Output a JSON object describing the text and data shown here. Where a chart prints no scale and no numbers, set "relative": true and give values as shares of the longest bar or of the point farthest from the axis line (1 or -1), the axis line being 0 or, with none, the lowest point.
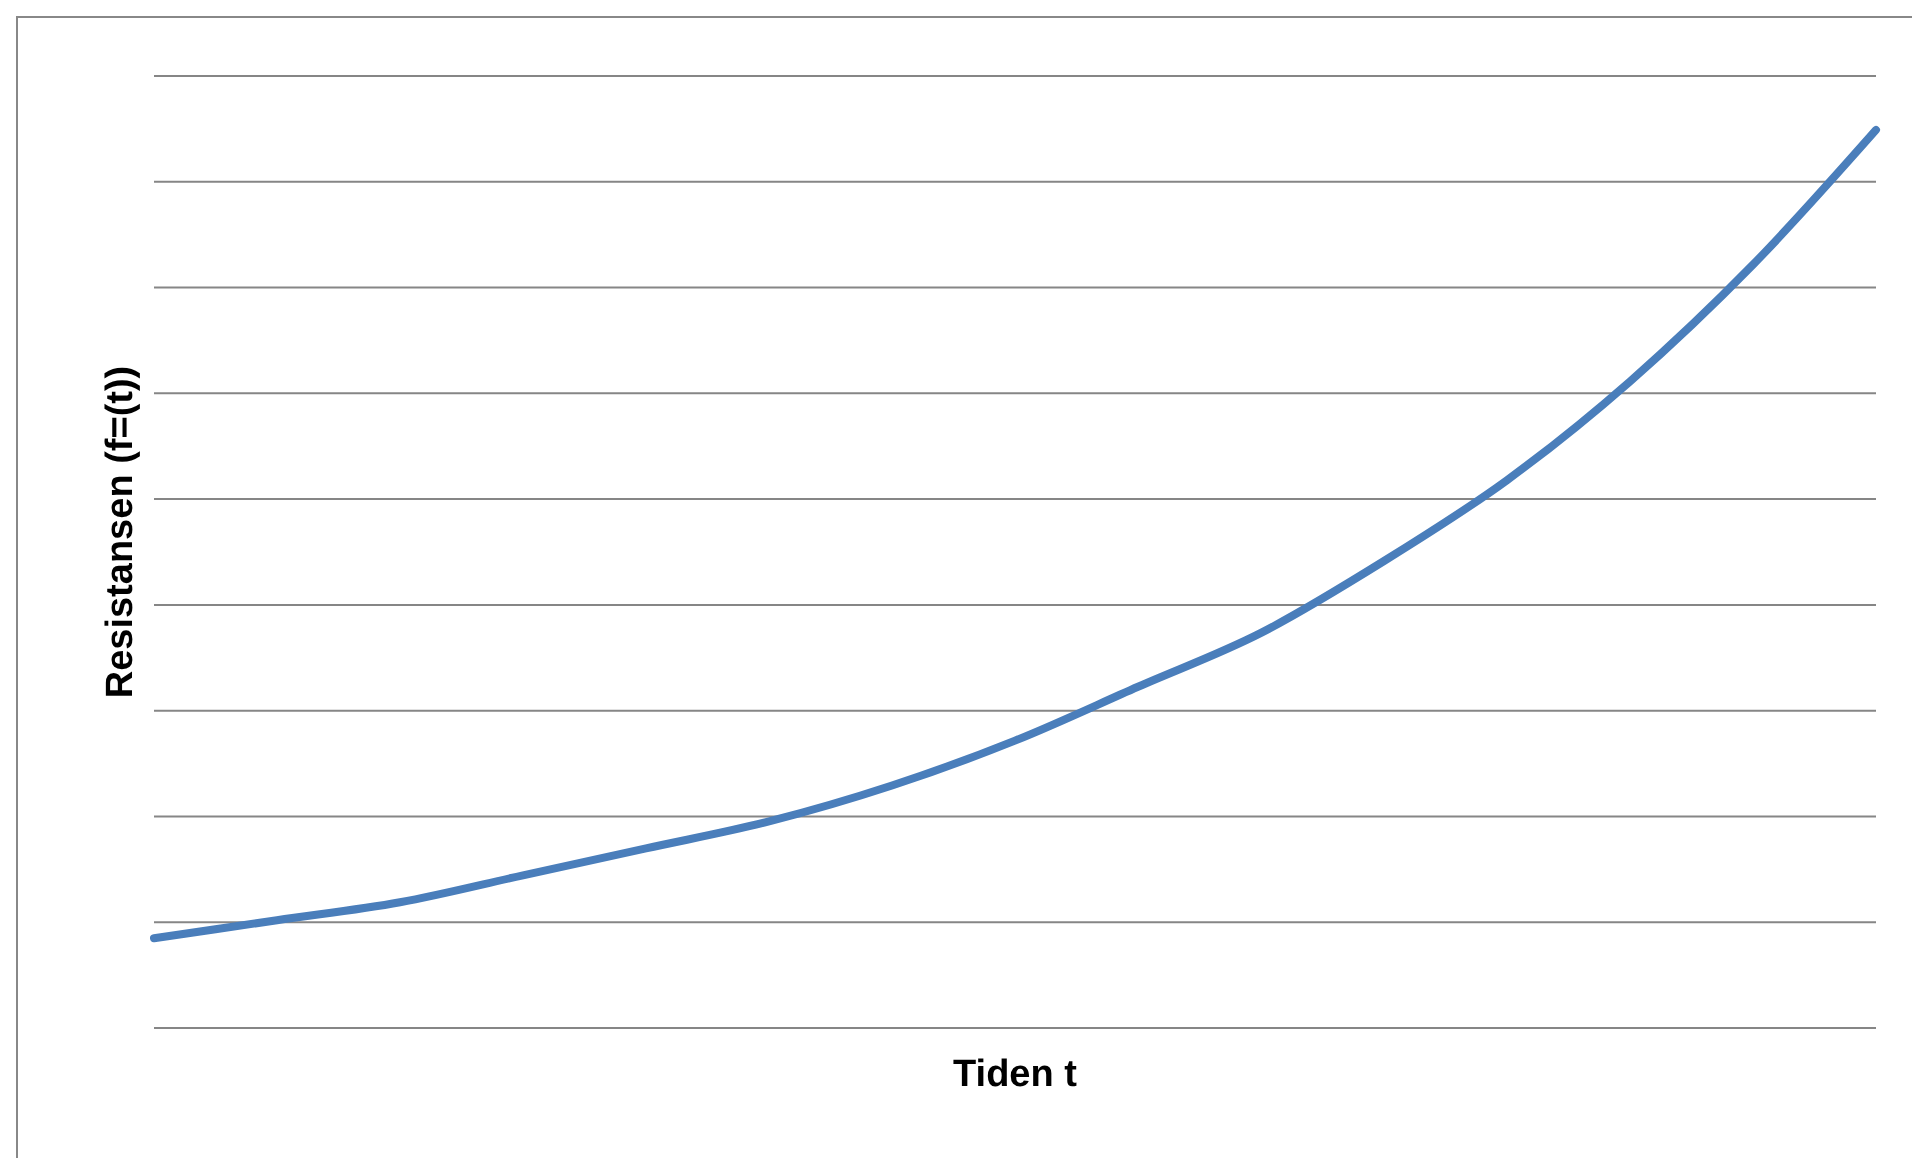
{
  "chart_data": {
    "type": "line",
    "relative": true,
    "xlabel": "Tiden t",
    "ylabel": "Resistansen (f=(t))",
    "grid": "y",
    "marker": "none",
    "line_style": "solid",
    "categories": [
      null,
      null,
      null,
      null,
      null,
      null,
      null,
      null,
      null,
      null,
      null,
      null,
      null,
      null,
      null
    ],
    "series": [
      {
        "color": "#4a7ebb",
        "values": [
          0.1,
          0.12,
          0.14,
          0.17,
          0.2,
          0.23,
          0.27,
          0.32,
          0.38,
          0.44,
          0.52,
          0.61,
          0.72,
          0.85,
          1
        ]
      }
    ]
  }
}
